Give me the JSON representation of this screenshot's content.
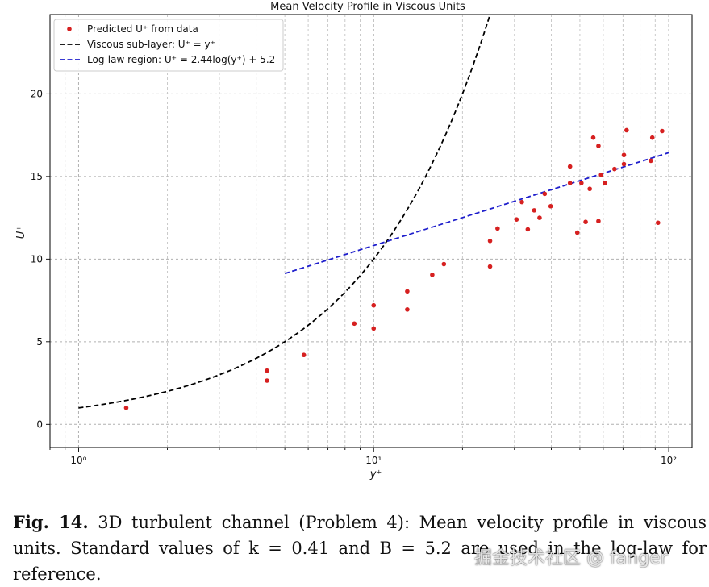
{
  "chart_data": {
    "type": "scatter",
    "title": "Mean Velocity Profile in Viscous Units",
    "xlabel": "y⁺",
    "ylabel": "U⁺",
    "xscale": "log",
    "xlim": [
      0.8,
      120
    ],
    "ylim": [
      -1.4,
      24.8
    ],
    "xticks": [
      {
        "value": 1,
        "label": "10⁰"
      },
      {
        "value": 10,
        "label": "10¹"
      },
      {
        "value": 100,
        "label": "10²"
      }
    ],
    "yticks": [
      {
        "value": 0,
        "label": "0"
      },
      {
        "value": 5,
        "label": "5"
      },
      {
        "value": 10,
        "label": "10"
      },
      {
        "value": 15,
        "label": "15"
      },
      {
        "value": 20,
        "label": "20"
      }
    ],
    "grid": true,
    "legend_position": "top-left",
    "legend": [
      {
        "label": "Predicted U⁺ from data",
        "style": "marker",
        "color": "#d62020"
      },
      {
        "label": "Viscous sub-layer: U⁺ = y⁺",
        "style": "dash",
        "color": "#000000"
      },
      {
        "label": "Log-law region: U⁺ = 2.44log(y⁺) + 5.2",
        "style": "dash",
        "color": "#1f1fcc"
      }
    ],
    "series": [
      {
        "name": "Predicted U⁺ from data",
        "kind": "scatter",
        "color": "#d62020",
        "points": [
          {
            "x": 1.45,
            "y": 1.0
          },
          {
            "x": 4.35,
            "y": 3.25
          },
          {
            "x": 4.35,
            "y": 2.65
          },
          {
            "x": 5.8,
            "y": 4.2
          },
          {
            "x": 8.6,
            "y": 6.1
          },
          {
            "x": 10.0,
            "y": 7.2
          },
          {
            "x": 10.0,
            "y": 5.8
          },
          {
            "x": 13.0,
            "y": 8.05
          },
          {
            "x": 13.0,
            "y": 6.95
          },
          {
            "x": 15.8,
            "y": 9.05
          },
          {
            "x": 17.3,
            "y": 9.7
          },
          {
            "x": 24.8,
            "y": 11.1
          },
          {
            "x": 24.8,
            "y": 9.55
          },
          {
            "x": 26.3,
            "y": 11.85
          },
          {
            "x": 30.5,
            "y": 12.4
          },
          {
            "x": 31.8,
            "y": 13.45
          },
          {
            "x": 33.3,
            "y": 11.8
          },
          {
            "x": 35.0,
            "y": 12.95
          },
          {
            "x": 36.5,
            "y": 12.5
          },
          {
            "x": 38.0,
            "y": 13.95
          },
          {
            "x": 39.8,
            "y": 13.2
          },
          {
            "x": 46.3,
            "y": 15.6
          },
          {
            "x": 46.3,
            "y": 14.6
          },
          {
            "x": 49.0,
            "y": 11.6
          },
          {
            "x": 50.6,
            "y": 14.6
          },
          {
            "x": 52.3,
            "y": 12.25
          },
          {
            "x": 54.0,
            "y": 14.25
          },
          {
            "x": 55.5,
            "y": 17.35
          },
          {
            "x": 57.8,
            "y": 16.85
          },
          {
            "x": 57.8,
            "y": 12.3
          },
          {
            "x": 59.0,
            "y": 15.1
          },
          {
            "x": 60.8,
            "y": 14.6
          },
          {
            "x": 65.5,
            "y": 15.45
          },
          {
            "x": 70.5,
            "y": 16.3
          },
          {
            "x": 70.5,
            "y": 15.75
          },
          {
            "x": 72.0,
            "y": 17.8
          },
          {
            "x": 87.0,
            "y": 15.95
          },
          {
            "x": 88.0,
            "y": 17.35
          },
          {
            "x": 92.0,
            "y": 12.2
          },
          {
            "x": 95.0,
            "y": 17.75
          }
        ]
      },
      {
        "name": "Viscous sub-layer: U⁺ = y⁺",
        "kind": "curve",
        "color": "#000000",
        "formula": "U = y",
        "x_range": [
          1,
          30
        ]
      },
      {
        "name": "Log-law region: U⁺ = 2.44log(y⁺) + 5.2",
        "kind": "curve",
        "color": "#1f1fcc",
        "formula": "U = 2.44 ln(y) + 5.2",
        "x_range": [
          5,
          100
        ]
      }
    ]
  },
  "caption": {
    "fig_label": "Fig. 14.",
    "text": "3D turbulent channel (Problem 4): Mean velocity profile in viscous units. Standard values of k = 0.41 and B = 5.2 are used in the log-law for reference."
  },
  "watermark": "掘金技术社区 @ fanger"
}
